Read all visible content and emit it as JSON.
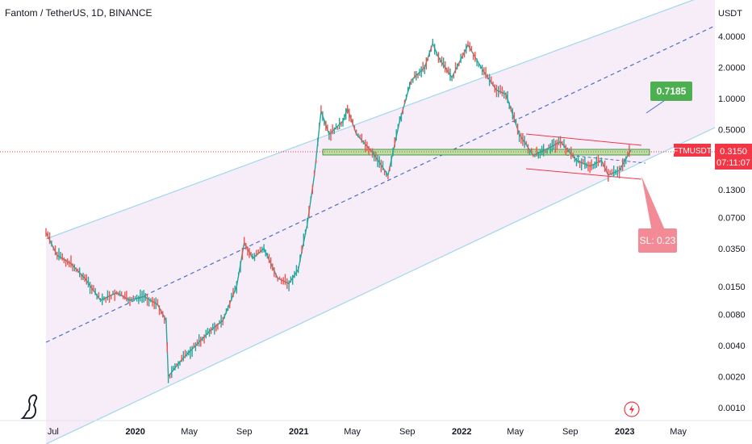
{
  "header": {
    "title": "Fantom / TetherUS, 1D, BINANCE"
  },
  "chart_data": {
    "type": "candlestick",
    "scale": "log",
    "currency": "USDT",
    "y_ticks": [
      "4.0000",
      "2.0000",
      "1.0000",
      "0.5000",
      "0.1300",
      "0.0700",
      "0.0350",
      "0.0150",
      "0.0080",
      "0.0040",
      "0.0020",
      "0.0010"
    ],
    "x_ticks": [
      "Jul",
      "2020",
      "May",
      "Sep",
      "2021",
      "May",
      "Sep",
      "2022",
      "May",
      "Sep",
      "2023",
      "May"
    ],
    "last_price": {
      "symbol": "FTMUSDT",
      "value": "0.3150",
      "countdown": "07:11:07"
    },
    "annotations": {
      "target": "0.7185",
      "stop_loss": "SL: 0.23"
    },
    "path": [
      [
        "2019-06-15",
        0.05
      ],
      [
        "2019-07-10",
        0.03
      ],
      [
        "2019-08-10",
        0.025
      ],
      [
        "2019-09-10",
        0.018
      ],
      [
        "2019-10-15",
        0.011
      ],
      [
        "2019-11-20",
        0.013
      ],
      [
        "2019-12-20",
        0.011
      ],
      [
        "2020-01-20",
        0.012
      ],
      [
        "2020-02-20",
        0.01
      ],
      [
        "2020-03-10",
        0.007
      ],
      [
        "2020-03-15",
        0.002
      ],
      [
        "2020-04-10",
        0.0028
      ],
      [
        "2020-05-15",
        0.004
      ],
      [
        "2020-06-15",
        0.0055
      ],
      [
        "2020-07-15",
        0.007
      ],
      [
        "2020-08-15",
        0.015
      ],
      [
        "2020-09-01",
        0.04
      ],
      [
        "2020-09-20",
        0.028
      ],
      [
        "2020-10-15",
        0.035
      ],
      [
        "2020-11-15",
        0.018
      ],
      [
        "2020-12-10",
        0.016
      ],
      [
        "2020-12-31",
        0.022
      ],
      [
        "2021-01-20",
        0.06
      ],
      [
        "2021-02-05",
        0.18
      ],
      [
        "2021-02-20",
        0.75
      ],
      [
        "2021-03-10",
        0.45
      ],
      [
        "2021-04-10",
        0.6
      ],
      [
        "2021-04-20",
        0.8
      ],
      [
        "2021-05-10",
        0.45
      ],
      [
        "2021-06-15",
        0.3
      ],
      [
        "2021-07-20",
        0.18
      ],
      [
        "2021-08-15",
        0.6
      ],
      [
        "2021-09-10",
        1.5
      ],
      [
        "2021-10-10",
        2.0
      ],
      [
        "2021-10-28",
        3.4
      ],
      [
        "2021-11-10",
        2.5
      ],
      [
        "2021-12-10",
        1.6
      ],
      [
        "2022-01-15",
        3.3
      ],
      [
        "2022-02-20",
        1.8
      ],
      [
        "2022-03-20",
        1.2
      ],
      [
        "2022-04-10",
        1.1
      ],
      [
        "2022-05-10",
        0.45
      ],
      [
        "2022-06-10",
        0.28
      ],
      [
        "2022-07-15",
        0.33
      ],
      [
        "2022-08-10",
        0.38
      ],
      [
        "2022-09-15",
        0.25
      ],
      [
        "2022-10-15",
        0.22
      ],
      [
        "2022-11-10",
        0.25
      ],
      [
        "2022-11-25",
        0.18
      ],
      [
        "2022-12-20",
        0.2
      ],
      [
        "2023-01-15",
        0.315
      ]
    ]
  }
}
